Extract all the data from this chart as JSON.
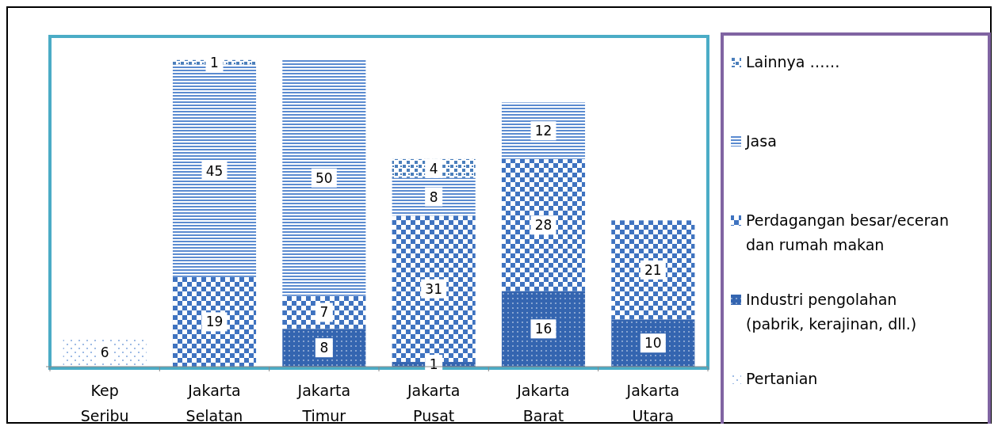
{
  "chart_data": {
    "type": "bar",
    "stacked": true,
    "categories": [
      "Kep Seribu",
      "Jakarta Selatan",
      "Jakarta Timur",
      "Jakarta Pusat",
      "Jakarta Barat",
      "Jakarta Utara"
    ],
    "series": [
      {
        "name": "Pertanian",
        "color": "#7fa6dd",
        "values": [
          6,
          null,
          null,
          null,
          null,
          null
        ]
      },
      {
        "name": "Industri pengolahan (pabrik, kerajinan, dll.)",
        "color": "#3465b0",
        "values": [
          null,
          null,
          8,
          1,
          16,
          10
        ]
      },
      {
        "name": "Perdagangan besar/eceran dan rumah makan",
        "color": "#3f73c0",
        "values": [
          null,
          19,
          7,
          31,
          28,
          21
        ]
      },
      {
        "name": "Jasa",
        "color": "#5b8bd0",
        "values": [
          null,
          45,
          50,
          8,
          12,
          null
        ]
      },
      {
        "name": "Lainnya ……",
        "color": "#4a7ebb",
        "values": [
          null,
          1,
          null,
          4,
          null,
          null
        ]
      }
    ],
    "ylim": [
      0,
      70
    ],
    "tick_labels": "x",
    "data_labels": true,
    "legend": "right",
    "grid": false
  }
}
